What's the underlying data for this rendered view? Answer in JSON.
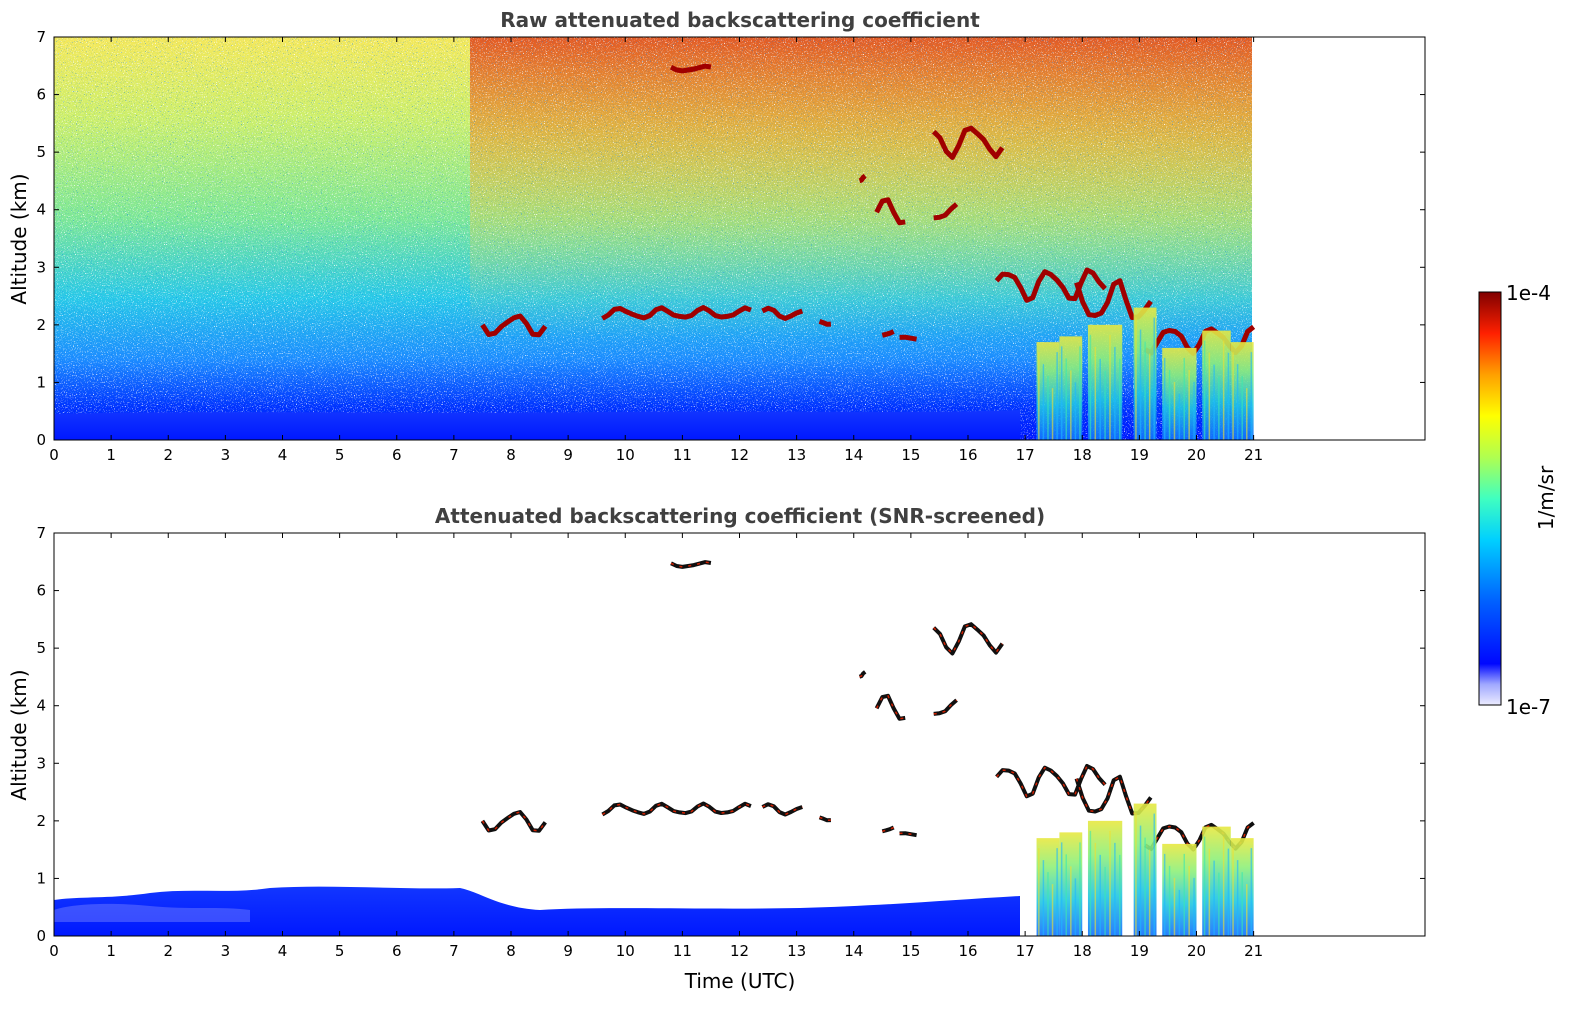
{
  "chart_data": [
    {
      "type": "heatmap",
      "title": "Raw attenuated backscattering coefficient",
      "xlabel": "",
      "ylabel": "Altitude (km)",
      "xlim": [
        0,
        24
      ],
      "ylim": [
        0,
        7
      ],
      "x_ticks": [
        "0",
        "1",
        "2",
        "3",
        "4",
        "5",
        "6",
        "7",
        "8",
        "9",
        "10",
        "11",
        "12",
        "13",
        "14",
        "15",
        "16",
        "17",
        "18",
        "19",
        "20",
        "21"
      ],
      "y_ticks": [
        "0",
        "1",
        "2",
        "3",
        "4",
        "5",
        "6",
        "7"
      ],
      "data_extent_hours": [
        0,
        21
      ],
      "boundary_layer_top_km": 0.4,
      "cloud_features": [
        {
          "x": [
            7.5,
            8.6
          ],
          "y": [
            1.8,
            2.2
          ]
        },
        {
          "x": [
            9.6,
            12.2
          ],
          "y": [
            2.1,
            2.3
          ]
        },
        {
          "x": [
            12.4,
            13.1
          ],
          "y": [
            2.1,
            2.3
          ]
        },
        {
          "x": [
            13.4,
            13.6
          ],
          "y": [
            2.0,
            2.1
          ]
        },
        {
          "x": [
            14.5,
            14.7
          ],
          "y": [
            1.8,
            1.9
          ]
        },
        {
          "x": [
            14.8,
            15.1
          ],
          "y": [
            1.7,
            1.8
          ]
        },
        {
          "x": [
            10.8,
            11.5
          ],
          "y": [
            6.4,
            6.5
          ]
        },
        {
          "x": [
            14.1,
            14.2
          ],
          "y": [
            4.5,
            4.6
          ]
        },
        {
          "x": [
            14.4,
            14.9
          ],
          "y": [
            3.7,
            4.2
          ]
        },
        {
          "x": [
            15.4,
            16.6
          ],
          "y": [
            4.9,
            5.5
          ]
        },
        {
          "x": [
            15.4,
            15.8
          ],
          "y": [
            3.8,
            4.1
          ]
        },
        {
          "x": [
            16.5,
            18.4
          ],
          "y": [
            2.4,
            3.0
          ]
        },
        {
          "x": [
            17.9,
            19.2
          ],
          "y": [
            2.0,
            2.8
          ]
        },
        {
          "x": [
            19.1,
            21.0
          ],
          "y": [
            1.5,
            2.0
          ]
        }
      ]
    },
    {
      "type": "heatmap",
      "title": "Attenuated backscattering coefficient (SNR-screened)",
      "xlabel": "Time (UTC)",
      "ylabel": "Altitude (km)",
      "xlim": [
        0,
        24
      ],
      "ylim": [
        0,
        7
      ],
      "x_ticks": [
        "0",
        "1",
        "2",
        "3",
        "4",
        "5",
        "6",
        "7",
        "8",
        "9",
        "10",
        "11",
        "12",
        "13",
        "14",
        "15",
        "16",
        "17",
        "18",
        "19",
        "20",
        "21"
      ],
      "y_ticks": [
        "0",
        "1",
        "2",
        "3",
        "4",
        "5",
        "6",
        "7"
      ],
      "data_extent_hours": [
        0,
        21
      ],
      "boundary_layer_top_km": 0.5
    }
  ],
  "colorbar": {
    "label": "1/m/sr",
    "max_label": "1e-4",
    "min_label": "1e-7",
    "scale": "log",
    "range": [
      1e-07,
      0.0001
    ],
    "colormap": "jet"
  }
}
